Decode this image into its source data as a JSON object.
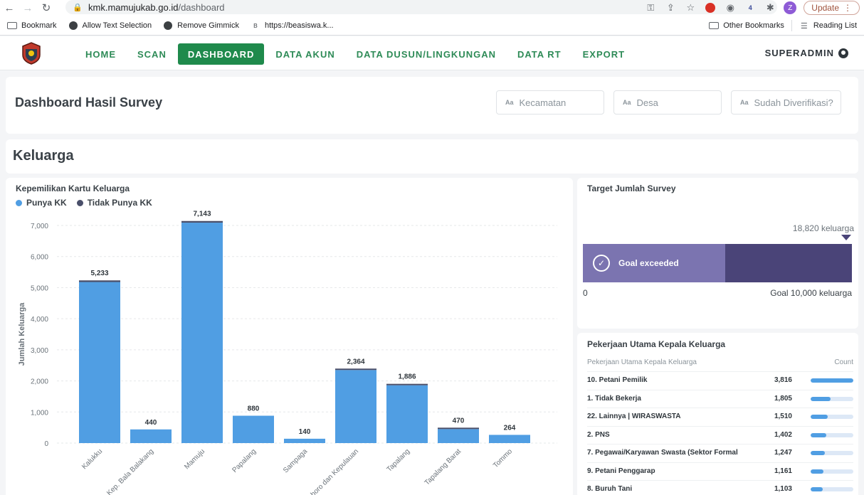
{
  "browser": {
    "url_host": "kmk.mamujukab.go.id",
    "url_path": "/dashboard",
    "update_label": "Update",
    "profile_initial": "Z",
    "extension_badge": "4",
    "bookmarks": [
      "Bookmark",
      "Allow Text Selection",
      "Remove Gimmick",
      "https://beasiswa.k..."
    ],
    "other_bookmarks": "Other Bookmarks",
    "reading_list": "Reading List"
  },
  "nav": {
    "items": [
      {
        "label": "HOME",
        "active": false
      },
      {
        "label": "SCAN",
        "active": false
      },
      {
        "label": "DASHBOARD",
        "active": true
      },
      {
        "label": "DATA AKUN",
        "active": false
      },
      {
        "label": "DATA DUSUN/LINGKUNGAN",
        "active": false
      },
      {
        "label": "DATA RT",
        "active": false
      },
      {
        "label": "EXPORT",
        "active": false
      }
    ],
    "user": "SUPERADMIN"
  },
  "header": {
    "title": "Dashboard Hasil Survey",
    "filters": [
      {
        "prefix": "Aa",
        "placeholder": "Kecamatan"
      },
      {
        "prefix": "Aa",
        "placeholder": "Desa"
      },
      {
        "prefix": "Aa",
        "placeholder": "Sudah Diverifikasi?"
      }
    ]
  },
  "section": {
    "title": "Keluarga"
  },
  "colors": {
    "punya_kk": "#509ee3",
    "tidak_punya_kk": "#4a4f6a",
    "goal_dark": "#4a4478",
    "goal_light": "#7b74b0",
    "nav_green": "#1f8a4c"
  },
  "chart_data": {
    "type": "bar",
    "title": "Kepemilikan Kartu Keluarga",
    "ylabel": "Jumlah Keluarga",
    "xlabel": "",
    "ylim": [
      0,
      7000
    ],
    "yticks": [
      "0",
      "1,000",
      "2,000",
      "3,000",
      "4,000",
      "5,000",
      "6,000",
      "7,000"
    ],
    "categories": [
      "Kalukku",
      "Kep. Bala Balakang",
      "Mamuju",
      "Papalang",
      "Sampaga",
      "Simboro dan Kepulauan",
      "Tapalang",
      "Tapalang Barat",
      "Tommo"
    ],
    "series": [
      {
        "name": "Punya KK",
        "values": [
          5180,
          440,
          7090,
          880,
          140,
          2350,
          1860,
          450,
          264
        ]
      },
      {
        "name": "Tidak Punya KK",
        "values": [
          53,
          0,
          53,
          0,
          0,
          14,
          26,
          20,
          0
        ]
      }
    ],
    "totals": [
      "5,233",
      "440",
      "7,143",
      "880",
      "140",
      "2,364",
      "1,886",
      "470",
      "264"
    ],
    "legend_position": "top-left",
    "grid": true
  },
  "target": {
    "title": "Target Jumlah Survey",
    "value_label": "18,820 keluarga",
    "progress_fraction": 0.53,
    "status": "Goal exceeded",
    "zero_label": "0",
    "goal_label": "Goal 10,000 keluarga"
  },
  "jobs": {
    "title": "Pekerjaan Utama Kepala Keluarga",
    "col_name": "Pekerjaan Utama Kepala Keluarga",
    "col_count": "Count",
    "rows": [
      {
        "name": "10. Petani Pemilik",
        "count": "3,816",
        "fraction": 1.0
      },
      {
        "name": "1. Tidak Bekerja",
        "count": "1,805",
        "fraction": 0.47
      },
      {
        "name": "22. Lainnya | WIRASWASTA",
        "count": "1,510",
        "fraction": 0.4
      },
      {
        "name": "2. PNS",
        "count": "1,402",
        "fraction": 0.37
      },
      {
        "name": "7. Pegawai/Karyawan Swasta (Sektor Formal",
        "count": "1,247",
        "fraction": 0.33
      },
      {
        "name": "9. Petani Penggarap",
        "count": "1,161",
        "fraction": 0.3
      },
      {
        "name": "8. Buruh Tani",
        "count": "1,103",
        "fraction": 0.29
      }
    ]
  }
}
